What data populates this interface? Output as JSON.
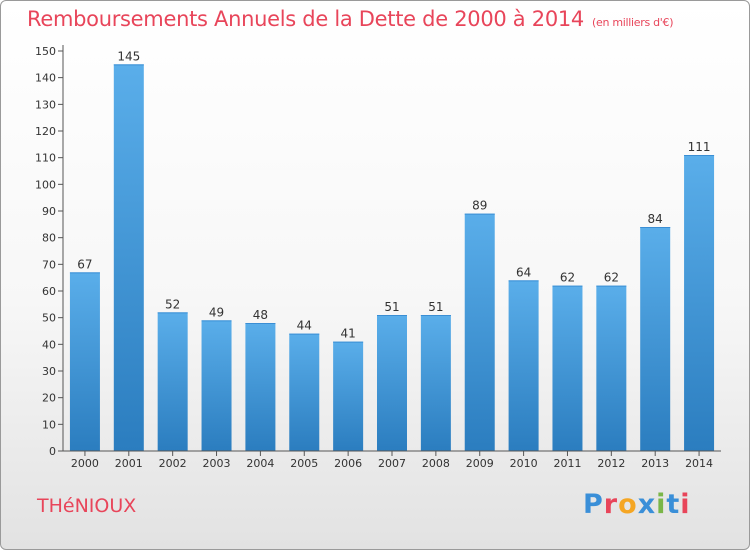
{
  "header": {
    "title": "Remboursements Annuels de la Dette de 2000 à 2014",
    "subtitle": "(en milliers d'€)"
  },
  "footer": {
    "place": "THéNIOUX",
    "logo_text": "Proxiti",
    "logo_colors": [
      "#3a8fd8",
      "#e8455a",
      "#f5a623",
      "#3a8fd8",
      "#7ab648",
      "#3a8fd8",
      "#e8455a"
    ]
  },
  "colors": {
    "accent": "#e8455a",
    "bar": "#4a9fe0",
    "bar_dark": "#2a7fc0"
  },
  "chart_data": {
    "type": "bar",
    "title": "Remboursements Annuels de la Dette de 2000 à 2014",
    "subtitle": "(en milliers d'€)",
    "xlabel": "",
    "ylabel": "",
    "categories": [
      "2000",
      "2001",
      "2002",
      "2003",
      "2004",
      "2005",
      "2006",
      "2007",
      "2008",
      "2009",
      "2010",
      "2011",
      "2012",
      "2013",
      "2014"
    ],
    "values": [
      67,
      145,
      52,
      49,
      48,
      44,
      41,
      51,
      51,
      89,
      64,
      62,
      62,
      84,
      111
    ],
    "ylim": [
      0,
      150
    ],
    "ytick_step": 10,
    "grid": false
  }
}
